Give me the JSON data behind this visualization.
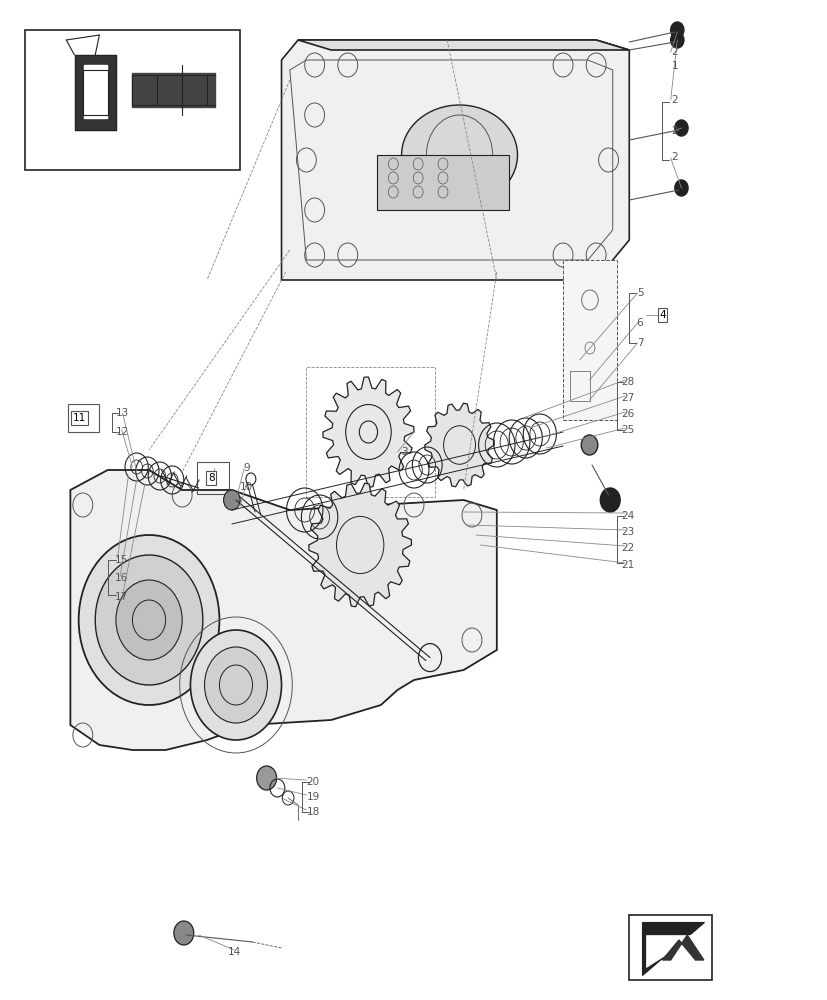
{
  "bg_color": "#ffffff",
  "line_color": "#555555",
  "dark_line": "#222222",
  "light_line": "#888888",
  "figsize": [
    8.28,
    10.0
  ],
  "dpi": 100
}
